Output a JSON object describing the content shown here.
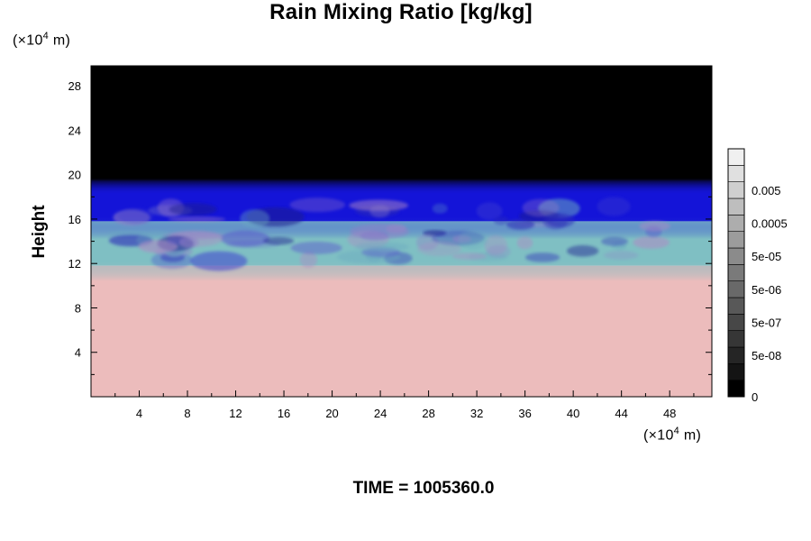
{
  "chart_data": {
    "type": "heatmap",
    "title": "Rain Mixing Ratio [kg/kg]",
    "ylabel": "Height",
    "xlabel": "",
    "x_unit": {
      "prefix": "(×10",
      "exp": "4",
      "suffix": " m)"
    },
    "y_unit": {
      "prefix": "(×10",
      "exp": "4",
      "suffix": " m)"
    },
    "time_label": "TIME = 1005360.0",
    "xlim": [
      0,
      51.5
    ],
    "ylim": [
      0,
      29.8
    ],
    "x_ticks": [
      4,
      8,
      12,
      16,
      20,
      24,
      28,
      32,
      36,
      40,
      44,
      48
    ],
    "y_ticks": [
      4,
      8,
      12,
      16,
      20,
      24,
      28
    ],
    "x_minor_step": 2,
    "y_minor_step": 2,
    "layers": [
      {
        "name": "upper",
        "y_from": 19.5,
        "y_to": 29.8,
        "color": "#000000"
      },
      {
        "name": "blue-band",
        "y_from": 15.8,
        "y_to": 19.5,
        "color": "#1414d8"
      },
      {
        "name": "cyan-band",
        "y_from": 11.8,
        "y_to": 15.8,
        "color": "#7fbfc3"
      },
      {
        "name": "gray-band",
        "y_from": 10.5,
        "y_to": 11.8,
        "color": "#c9b9bc"
      },
      {
        "name": "lower",
        "y_from": 0,
        "y_to": 10.5,
        "color": "#ecbcbc"
      }
    ],
    "colorbar": {
      "labels": [
        "0",
        "5e-08",
        "5e-07",
        "5e-06",
        "5e-05",
        "0.0005",
        "0.005"
      ],
      "colors": [
        "#000000",
        "#141414",
        "#252525",
        "#363636",
        "#474747",
        "#585858",
        "#696969",
        "#7a7a7a",
        "#8b8b8b",
        "#9c9c9c",
        "#adadad",
        "#bebebe",
        "#cfcfcf",
        "#e0e0e0",
        "#f0f0f0"
      ]
    }
  }
}
